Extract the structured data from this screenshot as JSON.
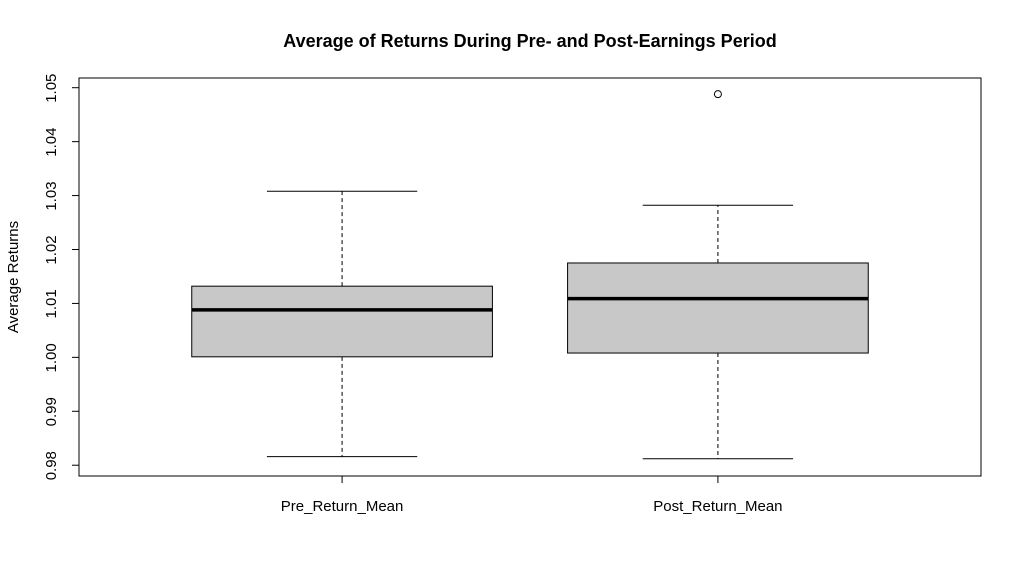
{
  "chart_data": {
    "type": "box",
    "title": "Average of Returns During Pre- and Post-Earnings Period",
    "xlabel": "",
    "ylabel": "Average Returns",
    "ylim": [
      0.978,
      1.0518
    ],
    "y_ticks": [
      "0.98",
      "0.99",
      "1.00",
      "1.01",
      "1.02",
      "1.03",
      "1.04",
      "1.05"
    ],
    "y_tick_values": [
      0.98,
      0.99,
      1.0,
      1.01,
      1.02,
      1.03,
      1.04,
      1.05
    ],
    "grid": false,
    "categories": [
      "Pre_Return_Mean",
      "Post_Return_Mean"
    ],
    "boxes": [
      {
        "category": "Pre_Return_Mean",
        "whisker_low": 0.9816,
        "q1": 1.0001,
        "median": 1.0088,
        "q3": 1.0132,
        "whisker_high": 1.0308,
        "outliers": []
      },
      {
        "category": "Post_Return_Mean",
        "whisker_low": 0.9812,
        "q1": 1.0008,
        "median": 1.0109,
        "q3": 1.0175,
        "whisker_high": 1.0282,
        "outliers": [
          1.0488
        ]
      }
    ],
    "colors": {
      "box_fill": "#c8c8c8",
      "stroke": "#000000",
      "background": "#ffffff"
    }
  }
}
